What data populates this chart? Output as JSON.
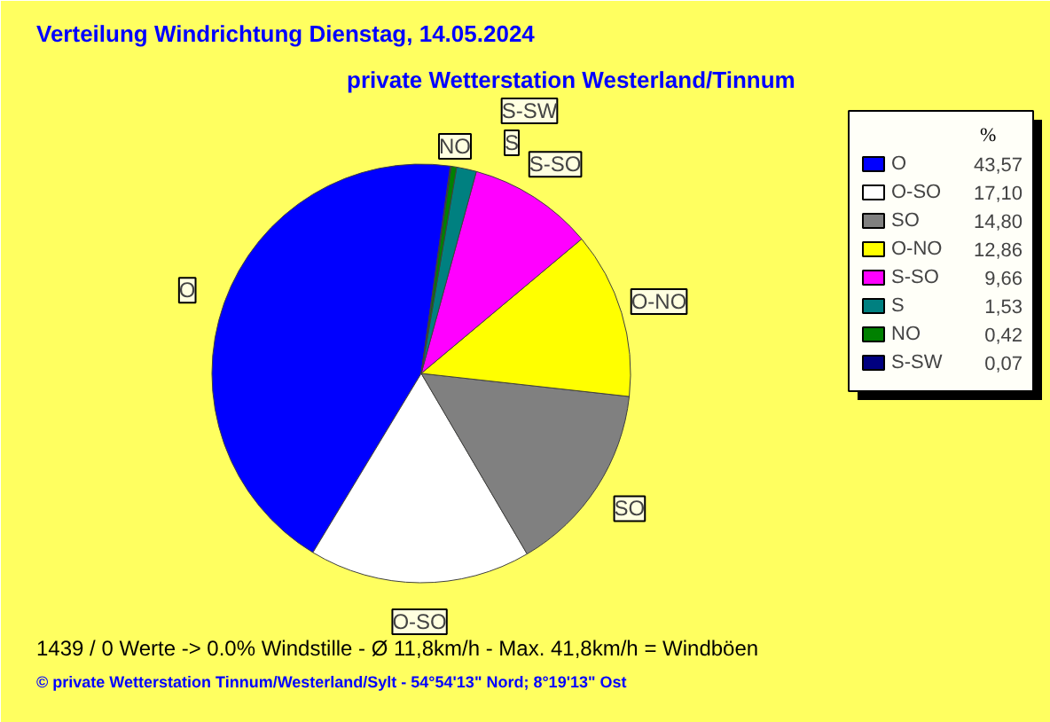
{
  "chart_data": {
    "type": "pie",
    "title": "Verteilung Windrichtung   Dienstag, 14.05.2024",
    "subtitle": "private Wetterstation Westerland/Tinnum",
    "categories": [
      "O",
      "O-SO",
      "SO",
      "O-NO",
      "S-SO",
      "S",
      "NO",
      "S-SW"
    ],
    "values": [
      43.57,
      17.1,
      14.8,
      12.86,
      9.66,
      1.53,
      0.42,
      0.07
    ],
    "value_labels": [
      "43,57",
      "17,10",
      "14,80",
      "12,86",
      "9,66",
      "1,53",
      "0,42",
      "0,07"
    ],
    "colors": [
      "#0000ff",
      "#ffffff",
      "#808080",
      "#ffff00",
      "#ff00ff",
      "#008080",
      "#008000",
      "#000080"
    ],
    "legend": "right",
    "legend_title": "%",
    "annotations": [
      "1439 / 0 Werte  -> 0.0% Windstille   -   Ø 11,8km/h  -  Max. 41,8km/h = Windböen",
      "© private Wetterstation Tinnum/Westerland/Sylt   -   54°54'13\" Nord; 8°19'13\" Ost"
    ]
  }
}
